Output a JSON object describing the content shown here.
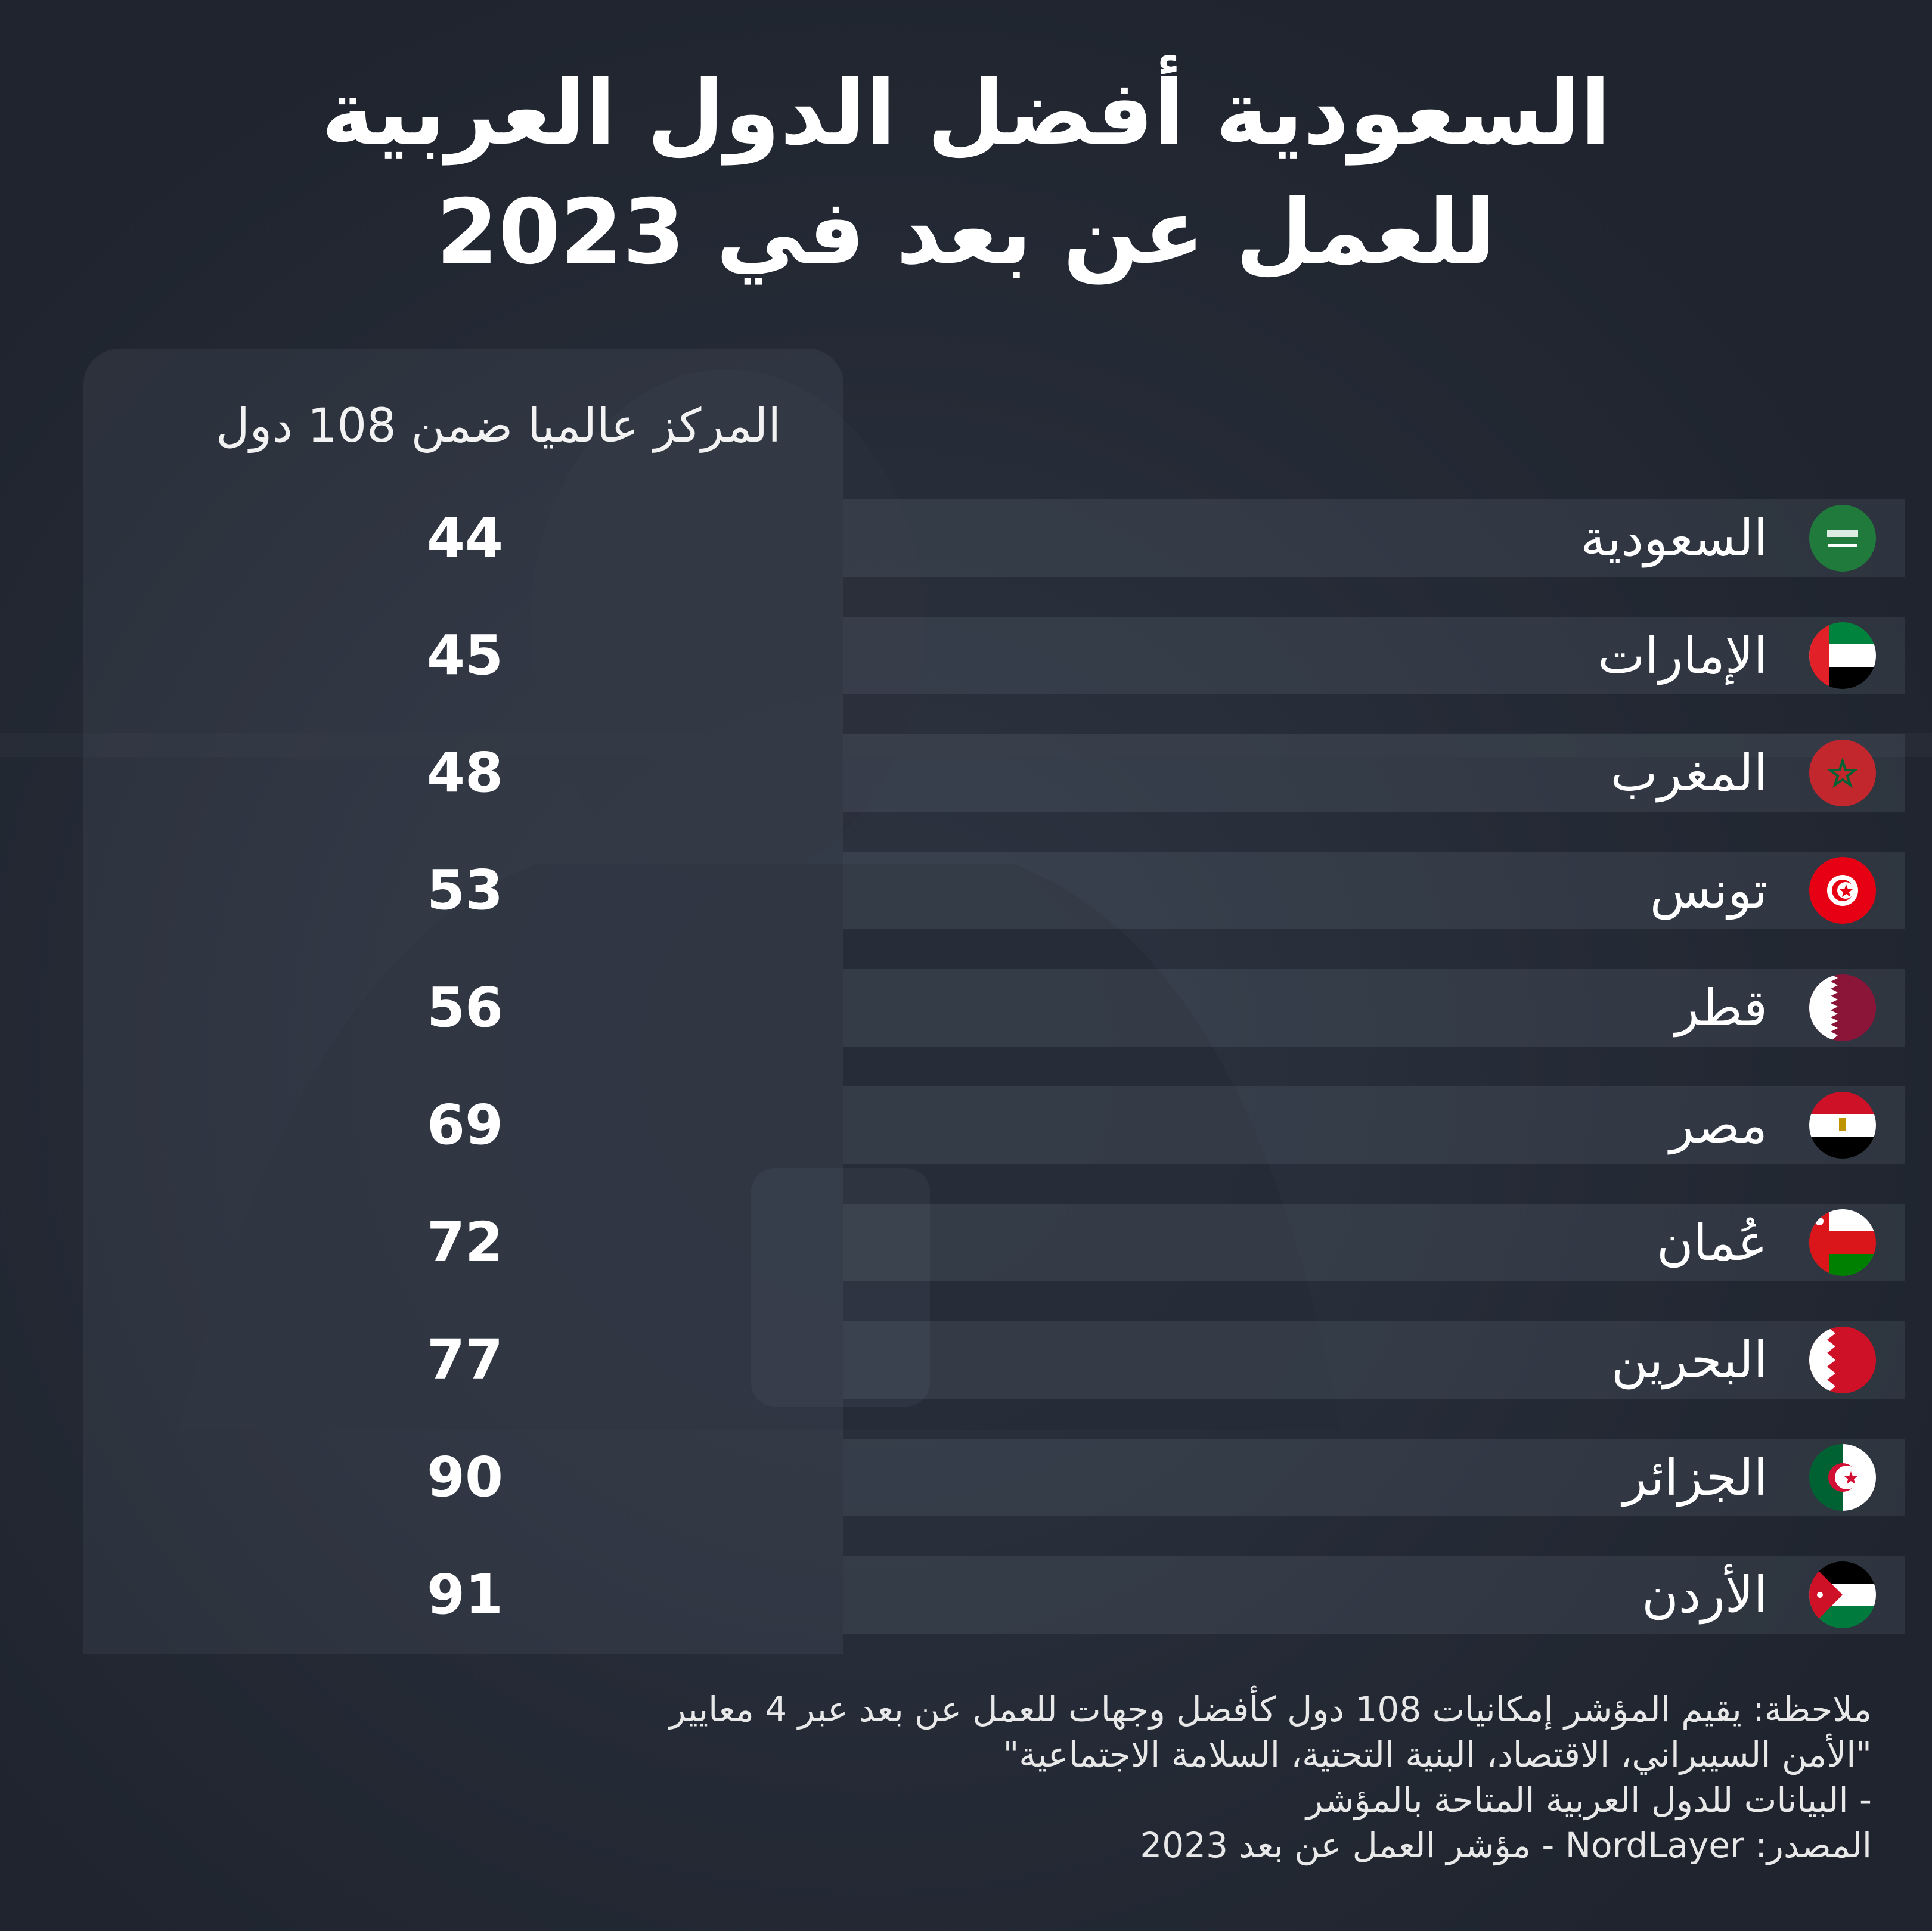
{
  "title": {
    "line1": "السعودية أفضل الدول العربية",
    "line2": "للعمل عن بعد في 2023"
  },
  "rank_header": "المركز عالميا ضمن 108 دول",
  "rows": [
    {
      "country": "السعودية",
      "rank": "44",
      "flag": "saudi-arabia-flag-icon"
    },
    {
      "country": "الإمارات",
      "rank": "45",
      "flag": "uae-flag-icon"
    },
    {
      "country": "المغرب",
      "rank": "48",
      "flag": "morocco-flag-icon"
    },
    {
      "country": "تونس",
      "rank": "53",
      "flag": "tunisia-flag-icon"
    },
    {
      "country": "قطر",
      "rank": "56",
      "flag": "qatar-flag-icon"
    },
    {
      "country": "مصر",
      "rank": "69",
      "flag": "egypt-flag-icon"
    },
    {
      "country": "عُمان",
      "rank": "72",
      "flag": "oman-flag-icon"
    },
    {
      "country": "البحرين",
      "rank": "77",
      "flag": "bahrain-flag-icon"
    },
    {
      "country": "الجزائر",
      "rank": "90",
      "flag": "algeria-flag-icon"
    },
    {
      "country": "الأردن",
      "rank": "91",
      "flag": "jordan-flag-icon"
    }
  ],
  "note": {
    "line1": "ملاحظة: يقيم المؤشر  إمكانيات 108 دول  كأفضل وجهات للعمل عن بعد عبر 4 معايير",
    "line2": "\"الأمن السيبراني، الاقتصاد، البنية التحتية، السلامة الاجتماعية\"",
    "line3": "- البيانات للدول العربية المتاحة بالمؤشر",
    "line4": "المصدر: NordLayer - مؤشر العمل عن بعد 2023"
  },
  "colors": {
    "background": "#222833",
    "text": "#ffffff"
  }
}
